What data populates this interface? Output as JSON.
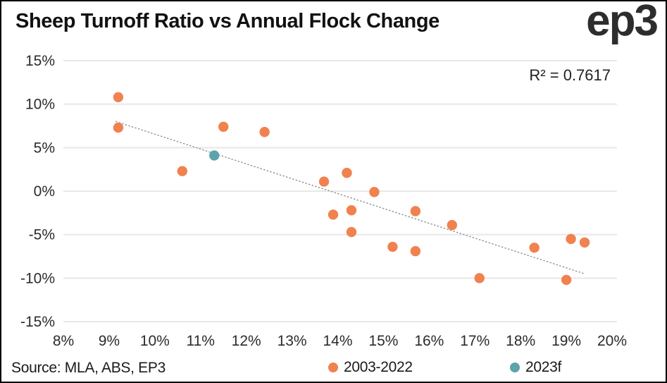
{
  "header": {
    "title": "Sheep Turnoff Ratio vs Annual Flock Change",
    "logo": "ep3"
  },
  "chart_data": {
    "type": "scatter",
    "title": "Sheep Turnoff Ratio vs Annual Flock Change",
    "xlabel": "",
    "ylabel": "",
    "x_unit": "%",
    "y_unit": "%",
    "x_range": [
      8,
      20
    ],
    "y_range": [
      -15,
      15
    ],
    "x_ticks": [
      8,
      9,
      10,
      11,
      12,
      13,
      14,
      15,
      16,
      17,
      18,
      19,
      20
    ],
    "y_ticks": [
      15,
      10,
      5,
      0,
      -5,
      -10,
      -15
    ],
    "grid": "horizontal-only",
    "legend_position": "bottom",
    "annotation": "R² = 0.7617",
    "series": [
      {
        "name": "2003-2022",
        "color": "#F0824F",
        "points": [
          [
            9.2,
            10.8
          ],
          [
            9.2,
            7.3
          ],
          [
            10.6,
            2.3
          ],
          [
            11.5,
            7.4
          ],
          [
            12.4,
            6.8
          ],
          [
            13.7,
            1.1
          ],
          [
            14.2,
            2.1
          ],
          [
            14.8,
            -0.1
          ],
          [
            13.9,
            -2.7
          ],
          [
            14.3,
            -2.2
          ],
          [
            15.7,
            -2.3
          ],
          [
            16.5,
            -3.9
          ],
          [
            14.3,
            -4.7
          ],
          [
            15.2,
            -6.4
          ],
          [
            15.7,
            -6.9
          ],
          [
            18.3,
            -6.5
          ],
          [
            19.1,
            -5.5
          ],
          [
            19.4,
            -5.9
          ],
          [
            17.1,
            -10.0
          ],
          [
            19.0,
            -10.2
          ]
        ]
      },
      {
        "name": "2023f",
        "color": "#5BA3AD",
        "points": [
          [
            11.3,
            4.1
          ]
        ]
      }
    ],
    "trendline": {
      "style": "dotted",
      "color": "#8C8C8C",
      "x1": 9.15,
      "y1": 8.0,
      "x2": 19.4,
      "y2": -9.5
    }
  },
  "footer": {
    "source": "Source: MLA, ABS, EP3"
  },
  "colors": {
    "orange": "#F0824F",
    "teal": "#5BA3AD",
    "gridline": "#E8E8E8",
    "axis_text": "#2B2B2B"
  }
}
